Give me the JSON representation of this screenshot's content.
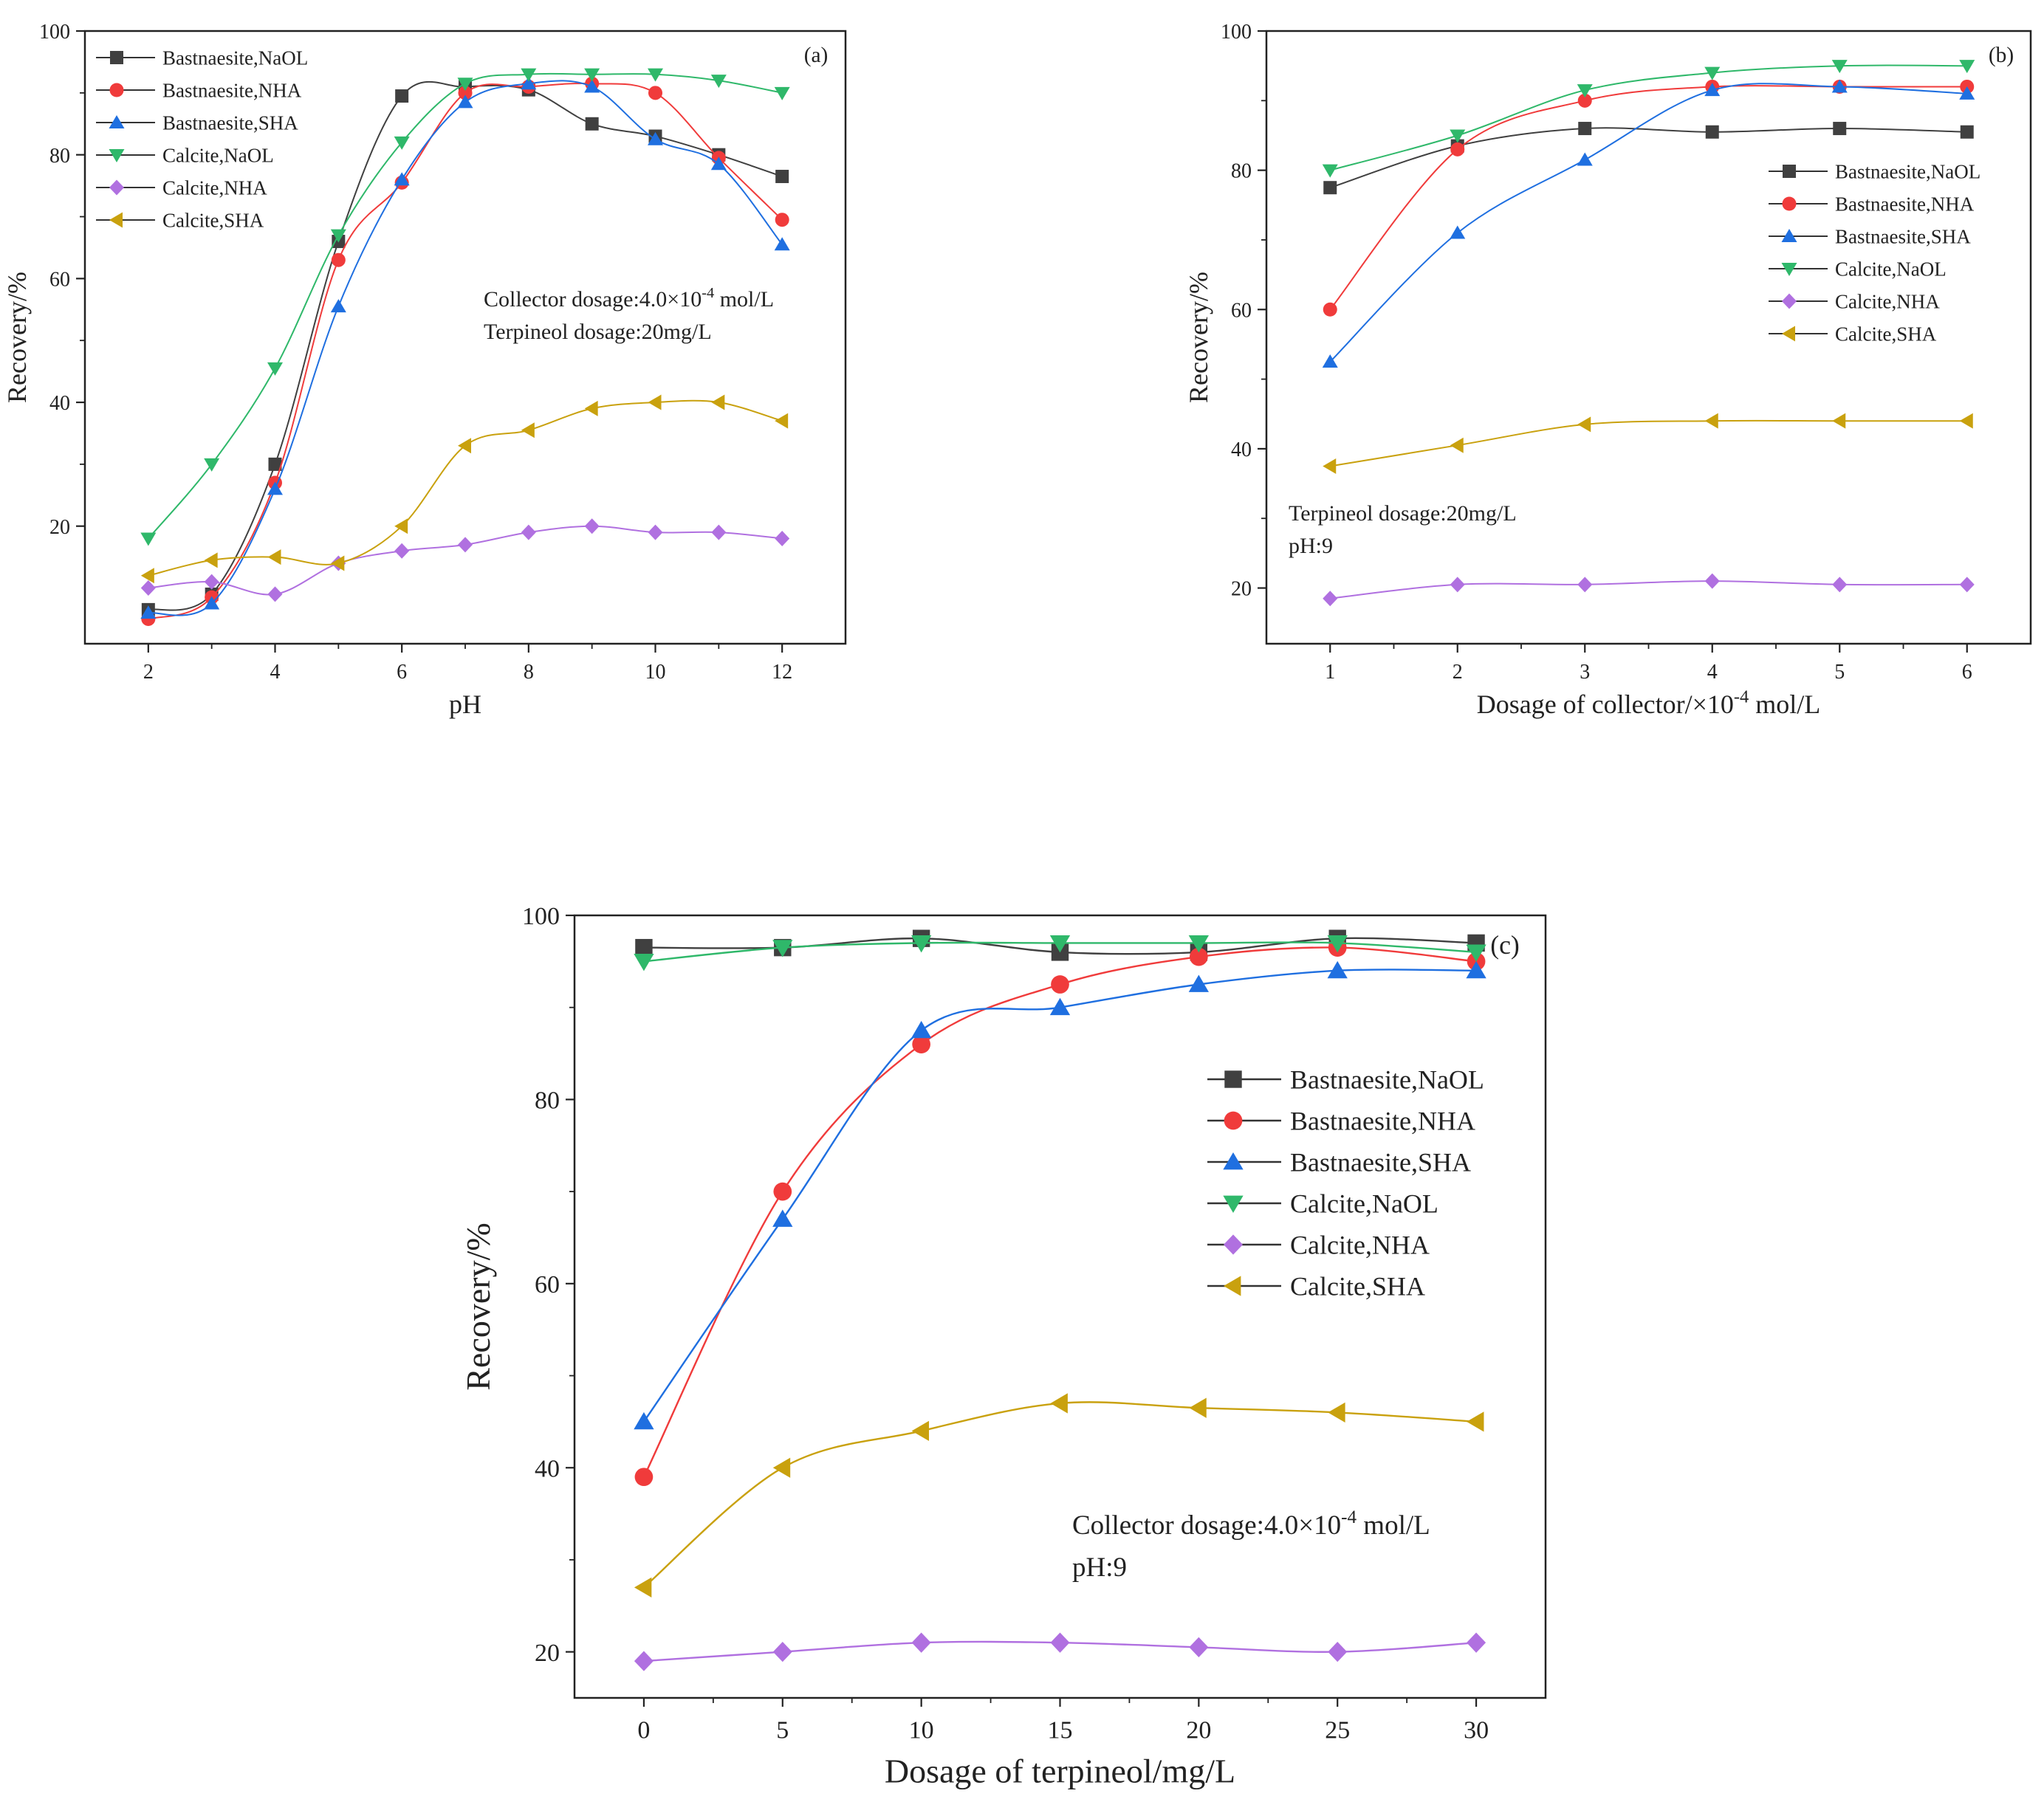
{
  "figure": {
    "colors": {
      "Bastnaesite,NaOL": "#404040",
      "Bastnaesite,NHA": "#f03b3b",
      "Bastnaesite,SHA": "#1f6fe0",
      "Calcite,NaOL": "#2fb86a",
      "Calcite,NHA": "#b070e0",
      "Calcite,SHA": "#c9a10e"
    },
    "markers": {
      "Bastnaesite,NaOL": "square",
      "Bastnaesite,NHA": "circle",
      "Bastnaesite,SHA": "triangle-up",
      "Calcite,NaOL": "triangle-down",
      "Calcite,NHA": "diamond",
      "Calcite,SHA": "triangle-left"
    }
  },
  "chart_data": [
    {
      "id": "a",
      "type": "line",
      "panel_label": "(a)",
      "title": "",
      "xlabel": "pH",
      "ylabel": "Recovery/%",
      "xlim": [
        1,
        13
      ],
      "ylim": [
        1,
        100
      ],
      "xticks": [
        2,
        4,
        6,
        8,
        10,
        12
      ],
      "yticks": [
        20,
        40,
        60,
        80,
        100
      ],
      "legend_position": "top-left",
      "annotation_lines": [
        "Collector dosage:4.0×10⁻⁴ mol/L",
        "Terpineol dosage:20mg/L"
      ],
      "x": [
        2,
        3,
        4,
        5,
        6,
        7,
        8,
        9,
        10,
        11,
        12
      ],
      "series": [
        {
          "name": "Bastnaesite,NaOL",
          "values": [
            6.5,
            9,
            30,
            66,
            89.5,
            91,
            90.5,
            85,
            83,
            80,
            76.5
          ]
        },
        {
          "name": "Bastnaesite,NHA",
          "values": [
            5,
            8.5,
            27,
            63,
            75.5,
            90,
            91,
            91.5,
            90,
            79.5,
            69.5
          ]
        },
        {
          "name": "Bastnaesite,SHA",
          "values": [
            6,
            7.5,
            26,
            55.5,
            76,
            88.5,
            91.5,
            91,
            82.5,
            78.5,
            65.5
          ]
        },
        {
          "name": "Calcite,NaOL",
          "values": [
            18,
            30,
            45.5,
            67,
            82,
            91.5,
            93,
            93,
            93,
            92,
            90
          ]
        },
        {
          "name": "Calcite,NHA",
          "values": [
            10,
            11,
            9,
            14,
            16,
            17,
            19,
            20,
            19,
            19,
            18
          ]
        },
        {
          "name": "Calcite,SHA",
          "values": [
            12,
            14.5,
            15,
            14,
            20,
            33,
            35.5,
            39,
            40,
            40,
            37
          ]
        }
      ]
    },
    {
      "id": "b",
      "type": "line",
      "panel_label": "(b)",
      "title": "",
      "xlabel": "Dosage of collector/×10⁻⁴ mol/L",
      "ylabel": "Recovery/%",
      "xlim": [
        0.5,
        6.5
      ],
      "ylim": [
        12,
        100
      ],
      "xticks": [
        1,
        2,
        3,
        4,
        5,
        6
      ],
      "yticks": [
        20,
        40,
        60,
        80,
        100
      ],
      "legend_position": "top-right",
      "annotation_lines": [
        "Terpineol dosage:20mg/L",
        "pH:9"
      ],
      "x": [
        1,
        2,
        3,
        4,
        5,
        6
      ],
      "series": [
        {
          "name": "Bastnaesite,NaOL",
          "values": [
            77.5,
            83.5,
            86,
            85.5,
            86,
            85.5
          ]
        },
        {
          "name": "Bastnaesite,NHA",
          "values": [
            60,
            83,
            90,
            92,
            92,
            92
          ]
        },
        {
          "name": "Bastnaesite,SHA",
          "values": [
            52.5,
            71,
            81.5,
            91.5,
            92,
            91
          ]
        },
        {
          "name": "Calcite,NaOL",
          "values": [
            80,
            85,
            91.5,
            94,
            95,
            95
          ]
        },
        {
          "name": "Calcite,NHA",
          "values": [
            18.5,
            20.5,
            20.5,
            21,
            20.5,
            20.5
          ]
        },
        {
          "name": "Calcite,SHA",
          "values": [
            37.5,
            40.5,
            43.5,
            44,
            44,
            44
          ]
        }
      ]
    },
    {
      "id": "c",
      "type": "line",
      "panel_label": "(c)",
      "title": "",
      "xlabel": "Dosage of terpineol/mg/L",
      "ylabel": "Recovery/%",
      "xlim": [
        -2.5,
        32.5
      ],
      "ylim": [
        15,
        100
      ],
      "xticks": [
        0,
        5,
        10,
        15,
        20,
        25,
        30
      ],
      "yticks": [
        20,
        40,
        60,
        80,
        100
      ],
      "legend_position": "center-right",
      "annotation_lines": [
        "Collector dosage:4.0×10⁻⁴ mol/L",
        "pH:9"
      ],
      "x": [
        0,
        5,
        10,
        15,
        20,
        25,
        30
      ],
      "series": [
        {
          "name": "Bastnaesite,NaOL",
          "values": [
            96.5,
            96.5,
            97.5,
            96,
            96,
            97.5,
            97
          ]
        },
        {
          "name": "Bastnaesite,NHA",
          "values": [
            39,
            70,
            86,
            92.5,
            95.5,
            96.5,
            95
          ]
        },
        {
          "name": "Bastnaesite,SHA",
          "values": [
            45,
            67,
            87.5,
            90,
            92.5,
            94,
            94
          ]
        },
        {
          "name": "Calcite,NaOL",
          "values": [
            95,
            96.5,
            97,
            97,
            97,
            97,
            96
          ]
        },
        {
          "name": "Calcite,NHA",
          "values": [
            19,
            20,
            21,
            21,
            20.5,
            20,
            21
          ]
        },
        {
          "name": "Calcite,SHA",
          "values": [
            27,
            40,
            44,
            47,
            46.5,
            46,
            45
          ]
        }
      ]
    }
  ]
}
